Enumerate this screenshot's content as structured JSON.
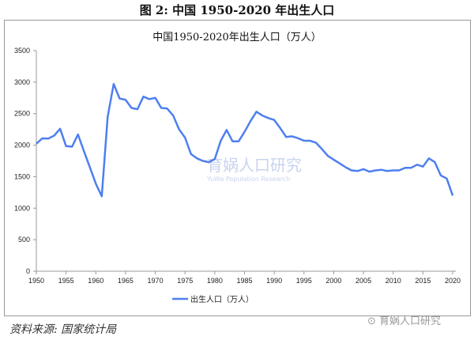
{
  "figure_title": "图 2: 中国 1950-2020 年出生人口",
  "source": "资料来源: 国家统计局",
  "watermark": "育娲人口研究",
  "center_watermark": "育娲人口研究",
  "center_watermark_sub": "YuWa Population Research",
  "chart_data": {
    "type": "line",
    "title": "中国1950-2020年出生人口（万人）",
    "xlabel": "",
    "ylabel": "",
    "xlim": [
      1950,
      2020
    ],
    "ylim": [
      0,
      3500
    ],
    "xticks": [
      1950,
      1955,
      1960,
      1965,
      1970,
      1975,
      1980,
      1985,
      1990,
      1995,
      2000,
      2005,
      2010,
      2015,
      2020
    ],
    "yticks": [
      0,
      500,
      1000,
      1500,
      2000,
      2500,
      3000,
      3500
    ],
    "grid": false,
    "legend": "bottom",
    "color": "#4e7ff0",
    "series": [
      {
        "name": "出生人口（万人）",
        "x": [
          1950,
          1951,
          1952,
          1953,
          1954,
          1955,
          1956,
          1957,
          1958,
          1959,
          1960,
          1961,
          1962,
          1963,
          1964,
          1965,
          1966,
          1967,
          1968,
          1969,
          1970,
          1971,
          1972,
          1973,
          1974,
          1975,
          1976,
          1977,
          1978,
          1979,
          1980,
          1981,
          1982,
          1983,
          1984,
          1985,
          1986,
          1987,
          1988,
          1989,
          1990,
          1991,
          1992,
          1993,
          1994,
          1995,
          1996,
          1997,
          1998,
          1999,
          2000,
          2001,
          2002,
          2003,
          2004,
          2005,
          2006,
          2007,
          2008,
          2009,
          2010,
          2011,
          2012,
          2013,
          2014,
          2015,
          2016,
          2017,
          2018,
          2019,
          2020
        ],
        "values": [
          2023,
          2107,
          2104,
          2151,
          2260,
          1984,
          1976,
          2169,
          1906,
          1647,
          1389,
          1189,
          2451,
          2970,
          2740,
          2720,
          2590,
          2570,
          2770,
          2730,
          2750,
          2590,
          2580,
          2470,
          2250,
          2120,
          1860,
          1790,
          1750,
          1730,
          1780,
          2070,
          2240,
          2060,
          2060,
          2210,
          2380,
          2530,
          2470,
          2430,
          2400,
          2270,
          2130,
          2140,
          2110,
          2070,
          2070,
          2040,
          1940,
          1830,
          1770,
          1710,
          1650,
          1600,
          1590,
          1620,
          1580,
          1600,
          1610,
          1590,
          1600,
          1600,
          1640,
          1640,
          1690,
          1660,
          1790,
          1730,
          1520,
          1470,
          1200
        ]
      }
    ]
  }
}
